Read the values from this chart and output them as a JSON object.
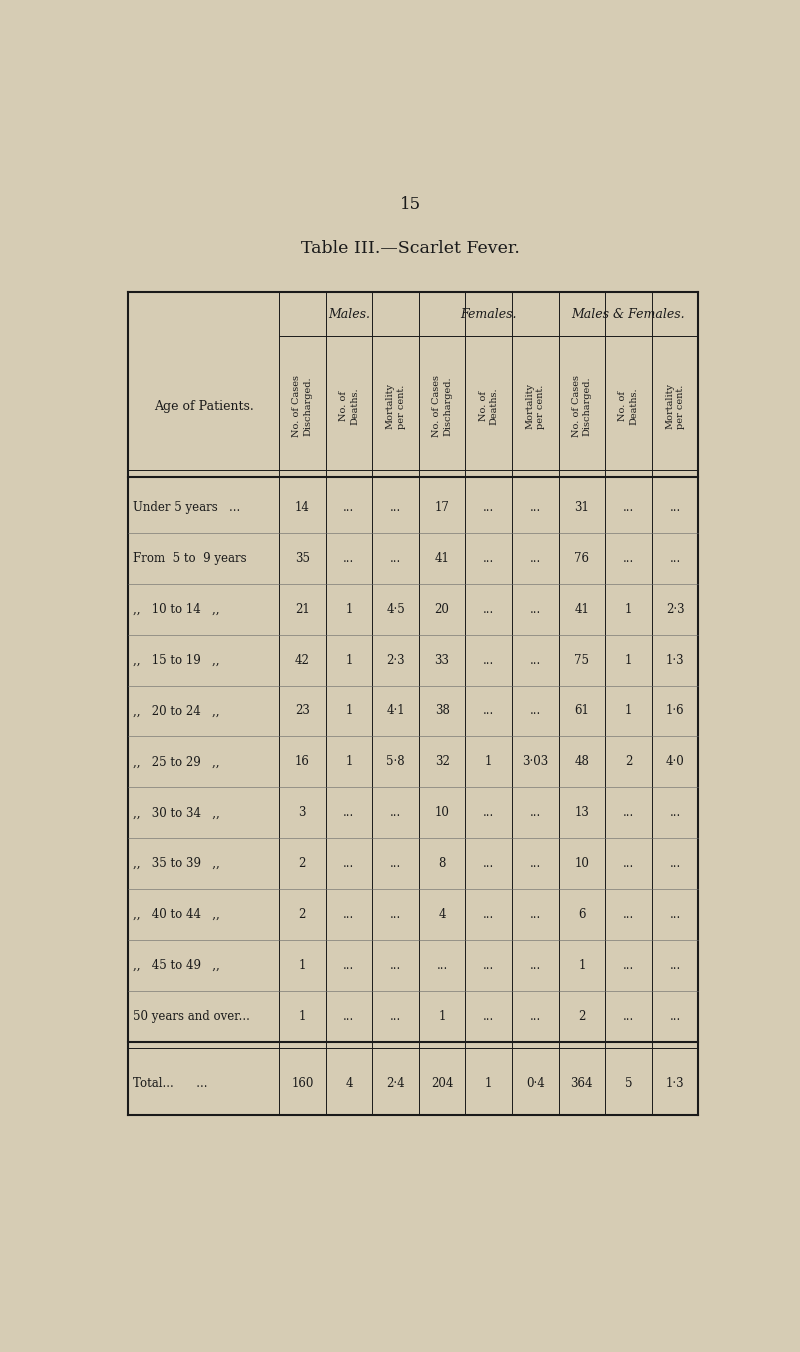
{
  "title": "Table III.—Scarlet Fever.",
  "page_number": "15",
  "bg_color": "#d6ccb4",
  "table_bg": "#e8e0cb",
  "col_header_groups": [
    "Males.",
    "Females.",
    "Males & Females."
  ],
  "col_headers": [
    "No. of Cases\nDischarged.",
    "No. of\nDeaths.",
    "Mortality\nper cent.",
    "No. of Cases\nDischarged.",
    "No. of\nDeaths.",
    "Mortality\nper cent.",
    "No. of Cases\nDischarged.",
    "No. of\nDeaths.",
    "Mortality\nper cent."
  ],
  "row_label_header": "Age of Patients.",
  "rows": [
    {
      "label": "Under 5 years   ...",
      "vals": [
        "14",
        "...",
        "...",
        "17",
        "...",
        "...",
        "31",
        "...",
        "..."
      ]
    },
    {
      "label": "From  5 to  9 years",
      "vals": [
        "35",
        "...",
        "...",
        "41",
        "...",
        "...",
        "76",
        "...",
        "..."
      ]
    },
    {
      "label": ",,   10 to 14   ,,",
      "vals": [
        "21",
        "1",
        "4·5",
        "20",
        "...",
        "...",
        "41",
        "1",
        "2·3"
      ]
    },
    {
      "label": ",,   15 to 19   ,,",
      "vals": [
        "42",
        "1",
        "2·3",
        "33",
        "...",
        "...",
        "75",
        "1",
        "1·3"
      ]
    },
    {
      "label": ",,   20 to 24   ,,",
      "vals": [
        "23",
        "1",
        "4·1",
        "38",
        "...",
        "...",
        "61",
        "1",
        "1·6"
      ]
    },
    {
      "label": ",,   25 to 29   ,,",
      "vals": [
        "16",
        "1",
        "5·8",
        "32",
        "1",
        "3·03",
        "48",
        "2",
        "4·0"
      ]
    },
    {
      "label": ",,   30 to 34   ,,",
      "vals": [
        "3",
        "...",
        "...",
        "10",
        "...",
        "...",
        "13",
        "...",
        "..."
      ]
    },
    {
      "label": ",,   35 to 39   ,,",
      "vals": [
        "2",
        "...",
        "...",
        "8",
        "...",
        "...",
        "10",
        "...",
        "..."
      ]
    },
    {
      "label": ",,   40 to 44   ,,",
      "vals": [
        "2",
        "...",
        "...",
        "4",
        "...",
        "...",
        "6",
        "...",
        "..."
      ]
    },
    {
      "label": ",,   45 to 49   ,,",
      "vals": [
        "1",
        "...",
        "...",
        "...",
        "...",
        "...",
        "1",
        "...",
        "..."
      ]
    },
    {
      "label": "50 years and over...",
      "vals": [
        "1",
        "...",
        "...",
        "1",
        "...",
        "...",
        "2",
        "...",
        "..."
      ]
    }
  ],
  "total_row": {
    "label": "Total...      ...",
    "vals": [
      "160",
      "4",
      "2·4",
      "204",
      "1",
      "0·4",
      "364",
      "5",
      "1·3"
    ]
  }
}
